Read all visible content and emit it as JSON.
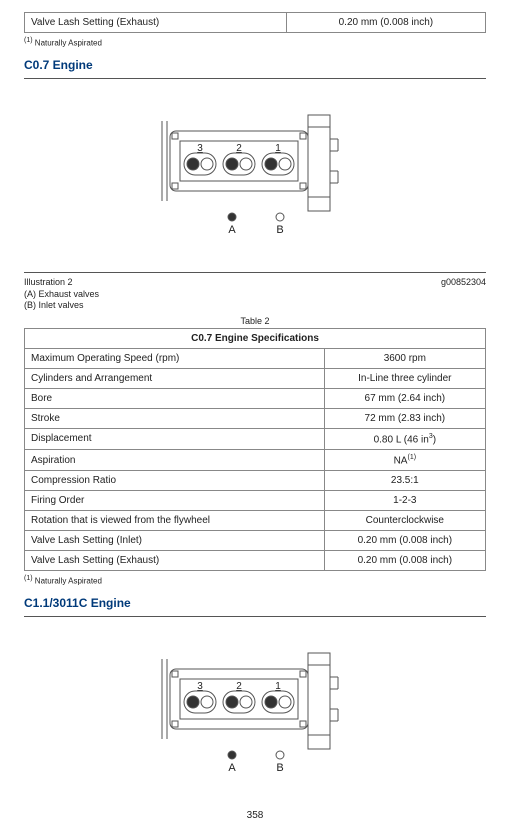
{
  "top_table": {
    "rows": [
      {
        "label": "Valve Lash Setting (Exhaust)",
        "value": "0.20 mm (0.008 inch)"
      }
    ]
  },
  "footnote1": "Naturally Aspirated",
  "heading1": "C0.7 Engine",
  "illus1": {
    "caption_left": "Illustration 2",
    "caption_right": "g00852304",
    "sub_a": "(A) Exhaust valves",
    "sub_b": "(B) Inlet valves",
    "labels": {
      "n3": "3",
      "n2": "2",
      "n1": "1",
      "A": "A",
      "B": "B"
    }
  },
  "table2_caption": "Table 2",
  "table2_title": "C0.7 Engine Specifications",
  "table2": {
    "rows": [
      {
        "label": "Maximum Operating Speed (rpm)",
        "value": "3600 rpm"
      },
      {
        "label": "Cylinders and Arrangement",
        "value": "In-Line three cylinder"
      },
      {
        "label": "Bore",
        "value": "67 mm (2.64 inch)"
      },
      {
        "label": "Stroke",
        "value": "72 mm (2.83 inch)"
      },
      {
        "label": "Displacement",
        "value_html": "0.80 L (46 in<sup>3</sup>)"
      },
      {
        "label": "Aspiration",
        "value_html": "NA<sup>(1)</sup>"
      },
      {
        "label": "Compression Ratio",
        "value": "23.5:1"
      },
      {
        "label": "Firing Order",
        "value": "1-2-3"
      },
      {
        "label": "Rotation that is viewed from the flywheel",
        "value": "Counterclockwise"
      },
      {
        "label": "Valve Lash Setting (Inlet)",
        "value": "0.20 mm (0.008 inch)"
      },
      {
        "label": "Valve Lash Setting (Exhaust)",
        "value": "0.20 mm (0.008 inch)"
      }
    ]
  },
  "footnote2": "Naturally Aspirated",
  "heading2": "C1.1/3011C Engine",
  "illus2": {
    "labels": {
      "n3": "3",
      "n2": "2",
      "n1": "1",
      "A": "A",
      "B": "B"
    }
  },
  "page_number": "358",
  "diagram": {
    "stroke": "#555555",
    "fill_black": "#333333",
    "fill_white": "#ffffff"
  }
}
